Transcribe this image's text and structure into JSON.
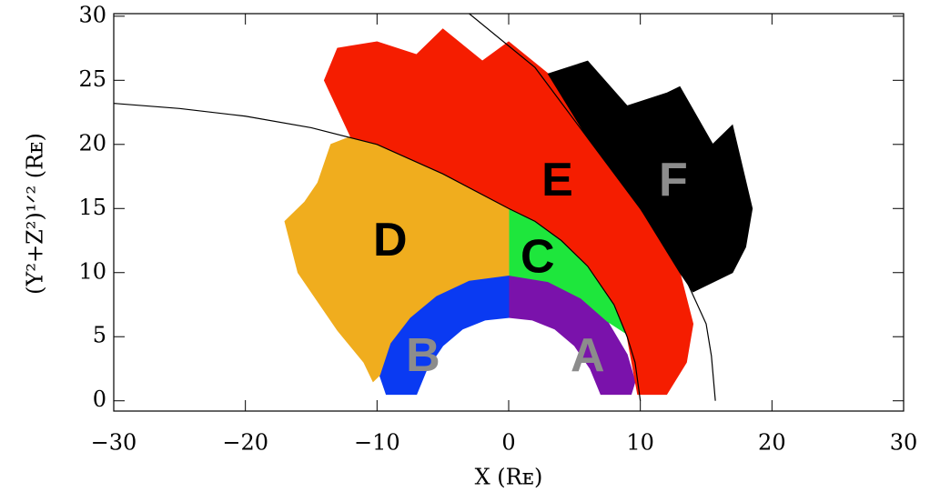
{
  "chart_data": {
    "type": "region",
    "xlabel": "X (Rᴇ)",
    "ylabel": "(Y²+Z²)¹ᐟ² (Rᴇ)",
    "xlim": [
      -30,
      30
    ],
    "ylim": [
      -0.8,
      30.2
    ],
    "xticks": [
      {
        "value": -30,
        "label": "−30"
      },
      {
        "value": -20,
        "label": "−20"
      },
      {
        "value": -10,
        "label": "−10"
      },
      0,
      10,
      20,
      30
    ],
    "yticks": [
      0,
      5,
      10,
      15,
      20,
      25,
      30
    ],
    "regions": [
      {
        "name": "A",
        "color": "#7a12ab",
        "label_color": "#8c8c8c",
        "label_x": 6,
        "label_y": 3.3,
        "x": [
          0,
          3,
          5.5,
          7.5,
          9,
          9.6,
          9.3,
          7,
          6.2,
          5,
          3.5,
          1.8,
          0
        ],
        "y": [
          9.8,
          9.3,
          8,
          6.2,
          3.6,
          1.5,
          0.5,
          0.5,
          2.5,
          4.3,
          5.6,
          6.3,
          6.5
        ]
      },
      {
        "name": "B",
        "color": "#0a3af2",
        "label_color": "#8c8c8c",
        "label_x": -6.5,
        "label_y": 3.3,
        "x": [
          0,
          -1.8,
          -3.5,
          -5,
          -6.2,
          -7,
          -9.3,
          -9.8,
          -9,
          -7.5,
          -5.5,
          -3,
          0
        ],
        "y": [
          6.5,
          6.3,
          5.6,
          4.3,
          2.5,
          0.5,
          0.5,
          2,
          4.5,
          6.5,
          8.2,
          9.4,
          9.8
        ]
      },
      {
        "name": "C",
        "color": "#1ee63c",
        "label_color": "#000000",
        "label_x": 2.2,
        "label_y": 11,
        "x": [
          0,
          0,
          2,
          4,
          6,
          8,
          9,
          7.5,
          5.5,
          3,
          0
        ],
        "y": [
          9.8,
          15,
          14,
          12.5,
          10.5,
          7.5,
          5.2,
          6.2,
          8,
          9.3,
          9.8
        ]
      },
      {
        "name": "D",
        "color": "#f0ad1e",
        "label_color": "#000000",
        "label_x": -9,
        "label_y": 12.3,
        "x": [
          0,
          -5,
          -10,
          -12,
          -13.5,
          -14.5,
          -15.5,
          -17,
          -16,
          -13,
          -11,
          -10.3,
          -9.8,
          -9,
          -7.5,
          -5.5,
          -3,
          0
        ],
        "y": [
          15,
          17.7,
          20,
          20.6,
          20,
          17,
          15.5,
          14,
          10,
          5.5,
          3,
          1.5,
          2,
          4.5,
          6.5,
          8.2,
          9.4,
          9.8
        ]
      },
      {
        "name": "E",
        "color": "#f51d00",
        "label_color": "#000000",
        "label_x": 3.7,
        "label_y": 17,
        "x": [
          9.8,
          9,
          8,
          6,
          4,
          2,
          0,
          -5,
          -10,
          -12,
          -14,
          -13,
          -10,
          -7,
          -5,
          -2,
          0,
          3,
          6,
          10,
          13,
          14,
          13.5,
          12
        ],
        "y": [
          0.5,
          5,
          7.5,
          10.5,
          12.5,
          14,
          15,
          17.7,
          20,
          20.6,
          25,
          27.5,
          28,
          27,
          29,
          26.5,
          28,
          25.5,
          20.5,
          15,
          10,
          6,
          3,
          0.5
        ]
      },
      {
        "name": "F",
        "color": "#000000",
        "label_color": "#8c8c8c",
        "label_x": 12.5,
        "label_y": 17,
        "x": [
          3,
          4.5,
          6,
          9,
          12,
          13,
          15.5,
          17,
          18.5,
          18,
          17,
          14,
          13,
          10,
          6
        ],
        "y": [
          25.5,
          26,
          26.5,
          23,
          24,
          24.5,
          20,
          21.5,
          15,
          12,
          10,
          8.5,
          10,
          15,
          20.5
        ]
      }
    ],
    "curves": [
      {
        "color": "#000000",
        "x": [
          10,
          9.6,
          9,
          8,
          6,
          4,
          2,
          0,
          -5,
          -10,
          -15,
          -20,
          -25,
          -30
        ],
        "y": [
          0,
          3,
          5,
          7.5,
          10.5,
          12.5,
          14,
          15,
          17.7,
          20,
          21.3,
          22.2,
          22.8,
          23.2
        ]
      },
      {
        "color": "#000000",
        "x": [
          15.7,
          15.4,
          15,
          13,
          10,
          6,
          2,
          -3
        ],
        "y": [
          0,
          3.5,
          6,
          10.5,
          15,
          20.5,
          26,
          30.2
        ]
      }
    ]
  }
}
